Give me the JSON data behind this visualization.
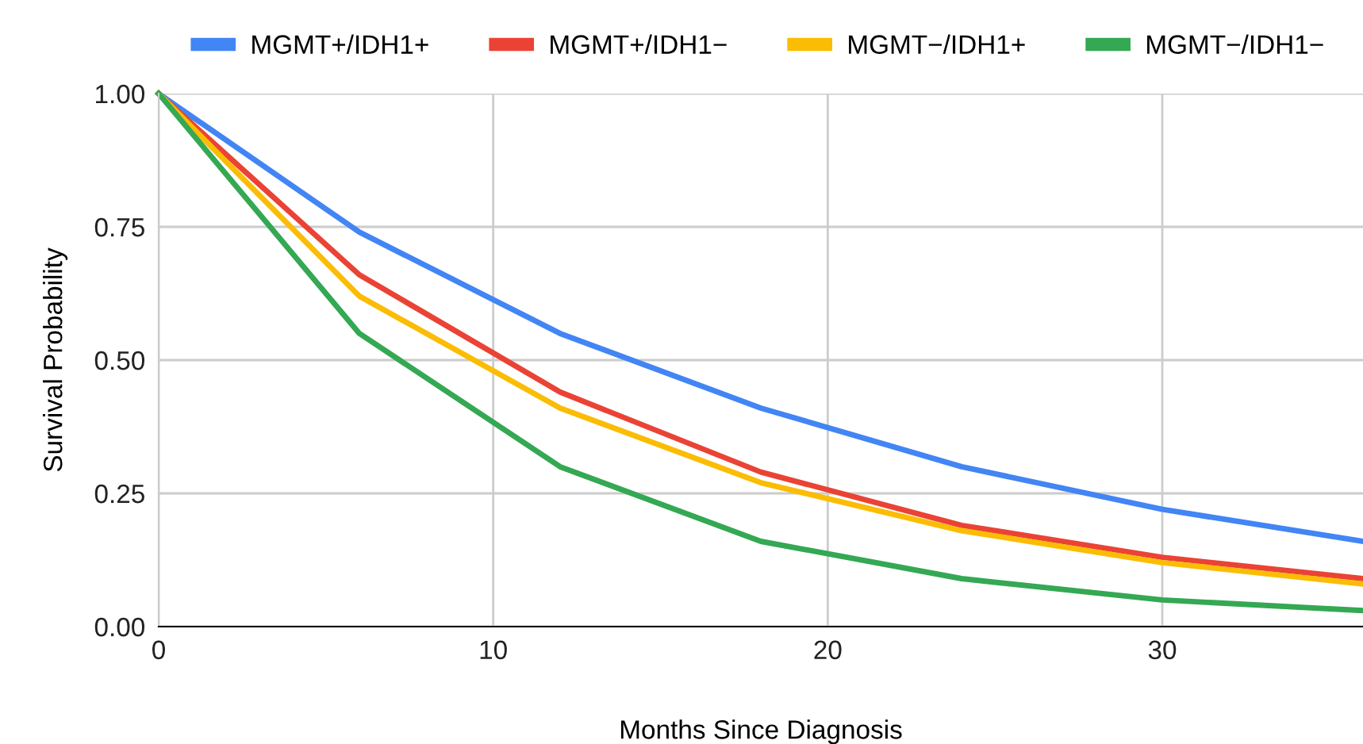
{
  "chart_data": {
    "type": "line",
    "xlabel": "Months Since Diagnosis",
    "ylabel": "Survival Probability",
    "x": [
      0,
      6,
      12,
      18,
      24,
      30,
      36
    ],
    "series": [
      {
        "name": "MGMT+/IDH1+",
        "color": "#4285f4",
        "values": [
          1.0,
          0.74,
          0.55,
          0.41,
          0.3,
          0.22,
          0.16
        ]
      },
      {
        "name": "MGMT+/IDH1−",
        "color": "#ea4335",
        "values": [
          1.0,
          0.66,
          0.44,
          0.29,
          0.19,
          0.13,
          0.09
        ]
      },
      {
        "name": "MGMT−/IDH1+",
        "color": "#fbbc04",
        "values": [
          1.0,
          0.62,
          0.41,
          0.27,
          0.18,
          0.12,
          0.08
        ]
      },
      {
        "name": "MGMT−/IDH1−",
        "color": "#34a853",
        "values": [
          1.0,
          0.55,
          0.3,
          0.16,
          0.09,
          0.05,
          0.03
        ]
      }
    ],
    "xlim": [
      0,
      36
    ],
    "ylim": [
      0,
      1
    ],
    "xticks": [
      0,
      10,
      20,
      30
    ],
    "yticks": [
      {
        "value": 0,
        "label": "0.00"
      },
      {
        "value": 0.25,
        "label": "0.25"
      },
      {
        "value": 0.5,
        "label": "0.50"
      },
      {
        "value": 0.75,
        "label": "0.75"
      },
      {
        "value": 1,
        "label": "1.00"
      }
    ],
    "grid": true,
    "legend": "top",
    "marker": "none",
    "line_style": "solid"
  }
}
